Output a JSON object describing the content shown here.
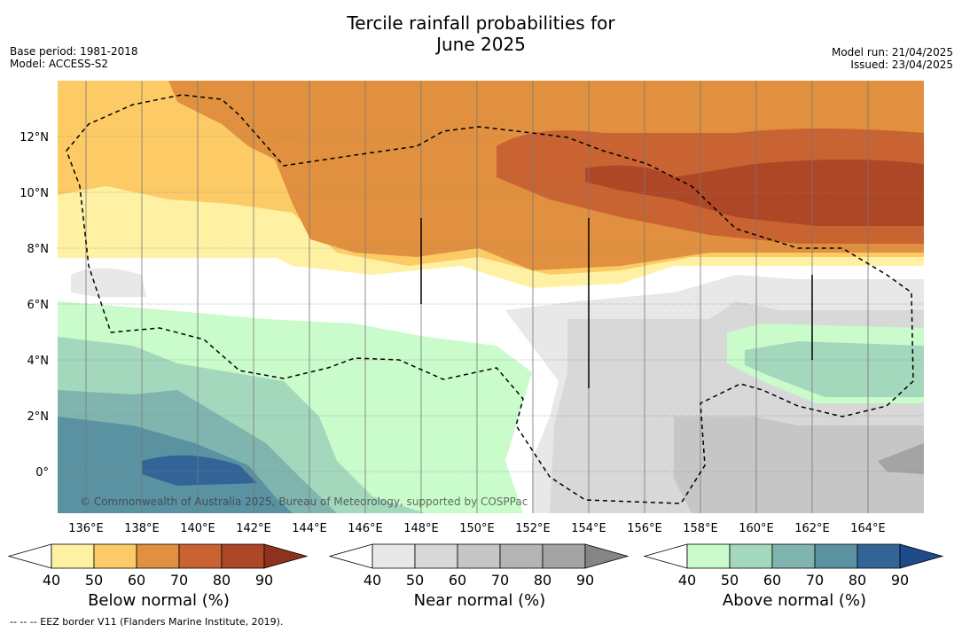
{
  "title_line1": "Tercile rainfall probabilities for",
  "title_line2": "June 2025",
  "base_period": "Base period: 1981-2018",
  "model": "Model: ACCESS-S2",
  "model_run": "Model run: 21/04/2025",
  "issued": "Issued: 23/04/2025",
  "copyright": "© Commonwealth of Australia 2025, Bureau of Meteorology, supported by COSPPac",
  "footer_note": "--  --  -- EEZ border V11 (Flanders Marine Institute, 2019).",
  "lon_labels": [
    "136°E",
    "138°E",
    "140°E",
    "142°E",
    "144°E",
    "146°E",
    "148°E",
    "150°E",
    "152°E",
    "154°E",
    "156°E",
    "158°E",
    "160°E",
    "162°E",
    "164°E"
  ],
  "lat_labels": [
    "12°N",
    "10°N",
    "8°N",
    "6°N",
    "4°N",
    "2°N",
    "0°"
  ],
  "colorbars": [
    {
      "label": "Below normal (%)",
      "ticks": [
        "40",
        "50",
        "60",
        "70",
        "80",
        "90"
      ],
      "colors": [
        "#fff1a4",
        "#fdcb66",
        "#e1903f",
        "#c96332",
        "#ad4726"
      ],
      "over": "#8e311d"
    },
    {
      "label": "Near normal (%)",
      "ticks": [
        "40",
        "50",
        "60",
        "70",
        "80",
        "90"
      ],
      "colors": [
        "#e8e8e8",
        "#d8d8d8",
        "#c6c6c6",
        "#b4b4b4",
        "#a4a4a4"
      ],
      "over": "#858585"
    },
    {
      "label": "Above normal (%)",
      "ticks": [
        "40",
        "50",
        "60",
        "70",
        "80",
        "90"
      ],
      "colors": [
        "#c9fbcb",
        "#a4d8bd",
        "#7fb5ae",
        "#5a92a2",
        "#336498"
      ],
      "over": "#1d4a88"
    }
  ]
}
